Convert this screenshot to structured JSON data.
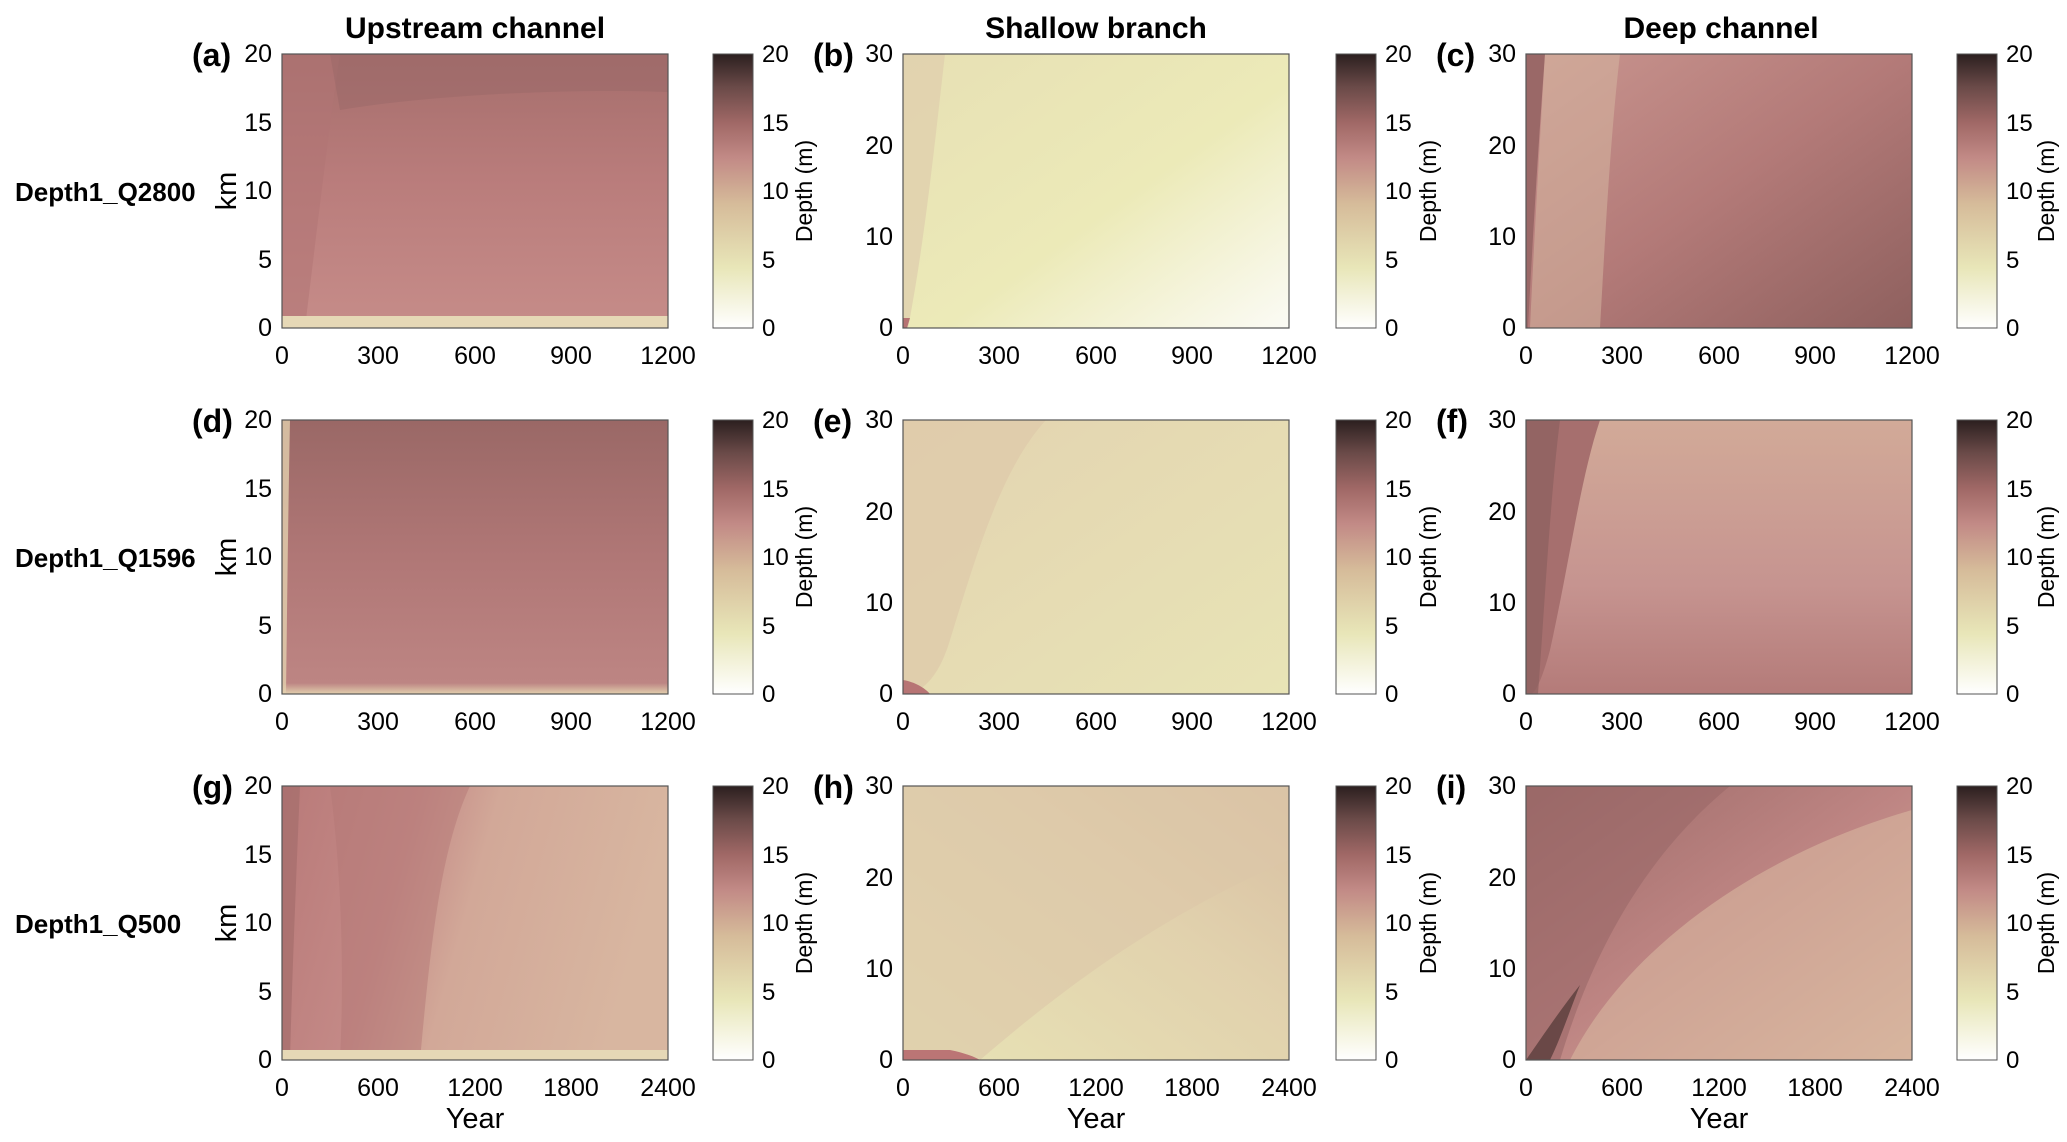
{
  "figure": {
    "column_titles": [
      "Upstream channel",
      "Shallow branch",
      "Deep channel"
    ],
    "row_labels": [
      "Depth1_Q2800",
      "Depth1_Q1596",
      "Depth1_Q500"
    ],
    "y_axis_label": "km",
    "x_axis_label": "Year",
    "colorbar": {
      "label": "Depth (m)",
      "ticks": [
        "0",
        "5",
        "10",
        "15",
        "20"
      ],
      "range": [
        0,
        20
      ],
      "colors": [
        "#ffffff",
        "#e8e6b8",
        "#d6bc9a",
        "#c28a86",
        "#a06866",
        "#6a4a48",
        "#2b1f1f"
      ]
    }
  },
  "chart_data": [
    {
      "panel": "(a)",
      "type": "heatmap",
      "column": "Upstream channel",
      "row": "Depth1_Q2800",
      "ylabel": "km",
      "xlim": [
        0,
        1200
      ],
      "ylim": [
        0,
        20
      ],
      "xticks": [
        "0",
        "300",
        "600",
        "900",
        "1200"
      ],
      "yticks": [
        "0",
        "5",
        "10",
        "15",
        "20"
      ],
      "zlim": [
        0,
        20
      ],
      "zlabel": "Depth (m)",
      "depth_samples": [
        {
          "year": 600,
          "km": 18,
          "depth": 14
        },
        {
          "year": 600,
          "km": 10,
          "depth": 12.5
        },
        {
          "year": 600,
          "km": 3,
          "depth": 12
        },
        {
          "year": 600,
          "km": 0.3,
          "depth": 7
        }
      ]
    },
    {
      "panel": "(b)",
      "type": "heatmap",
      "column": "Shallow branch",
      "row": "Depth1_Q2800",
      "ylabel": "",
      "xlim": [
        0,
        1200
      ],
      "ylim": [
        0,
        30
      ],
      "xticks": [
        "0",
        "300",
        "600",
        "900",
        "1200"
      ],
      "yticks": [
        "0",
        "10",
        "20",
        "30"
      ],
      "zlim": [
        0,
        20
      ],
      "zlabel": "Depth (m)",
      "depth_samples": [
        {
          "year": 50,
          "km": 25,
          "depth": 7.5
        },
        {
          "year": 600,
          "km": 25,
          "depth": 6
        },
        {
          "year": 1000,
          "km": 3,
          "depth": 3
        }
      ]
    },
    {
      "panel": "(c)",
      "type": "heatmap",
      "column": "Deep channel",
      "row": "Depth1_Q2800",
      "ylabel": "",
      "xlim": [
        0,
        1200
      ],
      "ylim": [
        0,
        30
      ],
      "xticks": [
        "0",
        "300",
        "600",
        "900",
        "1200"
      ],
      "yticks": [
        "0",
        "10",
        "20",
        "30"
      ],
      "zlim": [
        0,
        20
      ],
      "zlabel": "Depth (m)",
      "depth_samples": [
        {
          "year": 100,
          "km": 25,
          "depth": 9
        },
        {
          "year": 600,
          "km": 25,
          "depth": 12
        },
        {
          "year": 1000,
          "km": 3,
          "depth": 15
        }
      ]
    },
    {
      "panel": "(d)",
      "type": "heatmap",
      "column": "Upstream channel",
      "row": "Depth1_Q1596",
      "ylabel": "km",
      "xlim": [
        0,
        1200
      ],
      "ylim": [
        0,
        20
      ],
      "xticks": [
        "0",
        "300",
        "600",
        "900",
        "1200"
      ],
      "yticks": [
        "0",
        "5",
        "10",
        "15",
        "20"
      ],
      "zlim": [
        0,
        20
      ],
      "zlabel": "Depth (m)",
      "depth_samples": [
        {
          "year": 900,
          "km": 18,
          "depth": 15
        },
        {
          "year": 600,
          "km": 8,
          "depth": 13
        },
        {
          "year": 600,
          "km": 0.3,
          "depth": 8
        }
      ]
    },
    {
      "panel": "(e)",
      "type": "heatmap",
      "column": "Shallow branch",
      "row": "Depth1_Q1596",
      "ylabel": "",
      "xlim": [
        0,
        1200
      ],
      "ylim": [
        0,
        30
      ],
      "xticks": [
        "0",
        "300",
        "600",
        "900",
        "1200"
      ],
      "yticks": [
        "0",
        "10",
        "20",
        "30"
      ],
      "zlim": [
        0,
        20
      ],
      "zlabel": "Depth (m)",
      "depth_samples": [
        {
          "year": 100,
          "km": 25,
          "depth": 8
        },
        {
          "year": 800,
          "km": 10,
          "depth": 6.5
        }
      ]
    },
    {
      "panel": "(f)",
      "type": "heatmap",
      "column": "Deep channel",
      "row": "Depth1_Q1596",
      "ylabel": "",
      "xlim": [
        0,
        1200
      ],
      "ylim": [
        0,
        30
      ],
      "xticks": [
        "0",
        "300",
        "600",
        "900",
        "1200"
      ],
      "yticks": [
        "0",
        "10",
        "20",
        "30"
      ],
      "zlim": [
        0,
        20
      ],
      "zlabel": "Depth (m)",
      "depth_samples": [
        {
          "year": 50,
          "km": 25,
          "depth": 14
        },
        {
          "year": 800,
          "km": 25,
          "depth": 10
        },
        {
          "year": 800,
          "km": 5,
          "depth": 12.5
        }
      ]
    },
    {
      "panel": "(g)",
      "type": "heatmap",
      "column": "Upstream channel",
      "row": "Depth1_Q500",
      "ylabel": "km",
      "xlim": [
        0,
        2400
      ],
      "ylim": [
        0,
        20
      ],
      "xticks": [
        "0",
        "600",
        "1200",
        "1800",
        "2400"
      ],
      "yticks": [
        "0",
        "5",
        "10",
        "15",
        "20"
      ],
      "zlim": [
        0,
        20
      ],
      "zlabel": "Depth (m)",
      "depth_samples": [
        {
          "year": 400,
          "km": 15,
          "depth": 13
        },
        {
          "year": 1800,
          "km": 8,
          "depth": 10
        },
        {
          "year": 1200,
          "km": 0.3,
          "depth": 7
        }
      ]
    },
    {
      "panel": "(h)",
      "type": "heatmap",
      "column": "Shallow branch",
      "row": "Depth1_Q500",
      "ylabel": "",
      "xlim": [
        0,
        2400
      ],
      "ylim": [
        0,
        30
      ],
      "xticks": [
        "0",
        "600",
        "1200",
        "1800",
        "2400"
      ],
      "yticks": [
        "0",
        "10",
        "20",
        "30"
      ],
      "zlim": [
        0,
        20
      ],
      "zlabel": "Depth (m)",
      "depth_samples": [
        {
          "year": 1800,
          "km": 27,
          "depth": 9
        },
        {
          "year": 1800,
          "km": 5,
          "depth": 7
        },
        {
          "year": 200,
          "km": 0.5,
          "depth": 12
        }
      ]
    },
    {
      "panel": "(i)",
      "type": "heatmap",
      "column": "Deep channel",
      "row": "Depth1_Q500",
      "ylabel": "",
      "xlim": [
        0,
        2400
      ],
      "ylim": [
        0,
        30
      ],
      "xticks": [
        "0",
        "600",
        "1200",
        "1800",
        "2400"
      ],
      "yticks": [
        "0",
        "10",
        "20",
        "30"
      ],
      "zlim": [
        0,
        20
      ],
      "zlabel": "Depth (m)",
      "depth_samples": [
        {
          "year": 300,
          "km": 25,
          "depth": 15
        },
        {
          "year": 1200,
          "km": 15,
          "depth": 12
        },
        {
          "year": 2000,
          "km": 5,
          "depth": 9.5
        }
      ]
    }
  ]
}
